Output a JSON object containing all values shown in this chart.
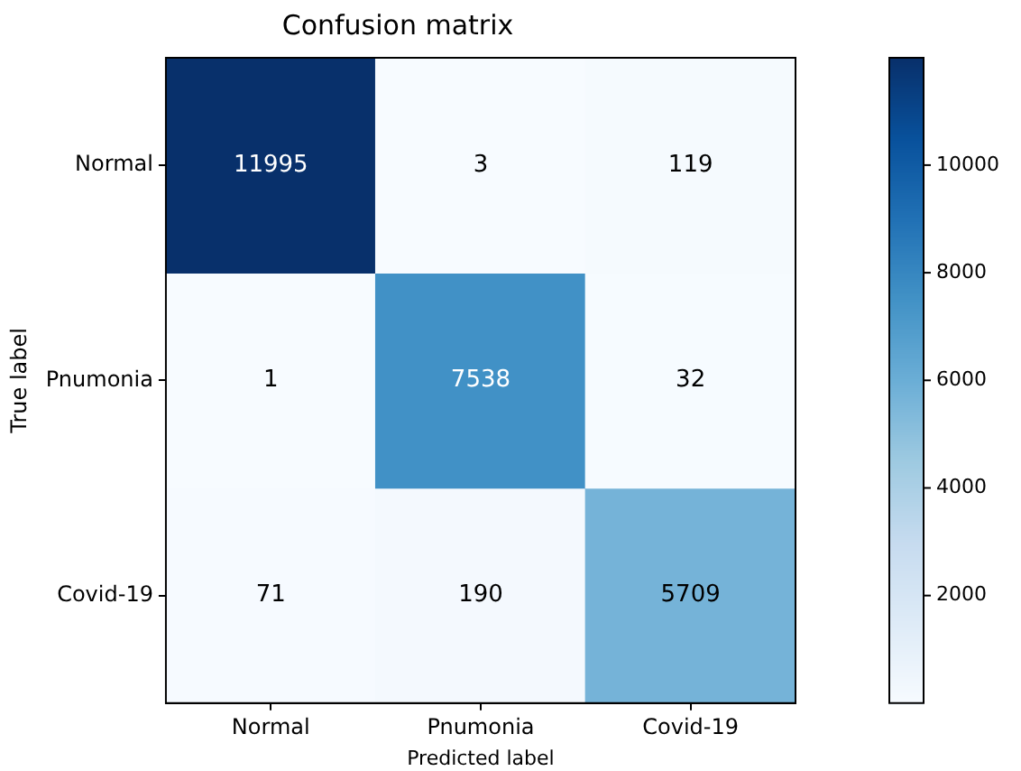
{
  "chart_data": {
    "type": "heatmap",
    "title": "Confusion matrix",
    "xlabel": "Predicted label",
    "ylabel": "True label",
    "categories": [
      "Normal",
      "Pnumonia",
      "Covid-19"
    ],
    "y_categories": [
      "Normal",
      "Pnumonia",
      "Covid-19"
    ],
    "cells": [
      [
        11995,
        3,
        119
      ],
      [
        1,
        7538,
        32
      ],
      [
        71,
        190,
        5709
      ]
    ],
    "clim": [
      1,
      11995
    ],
    "cticks": [
      2000,
      4000,
      6000,
      8000,
      10000
    ],
    "data_labels": true
  }
}
